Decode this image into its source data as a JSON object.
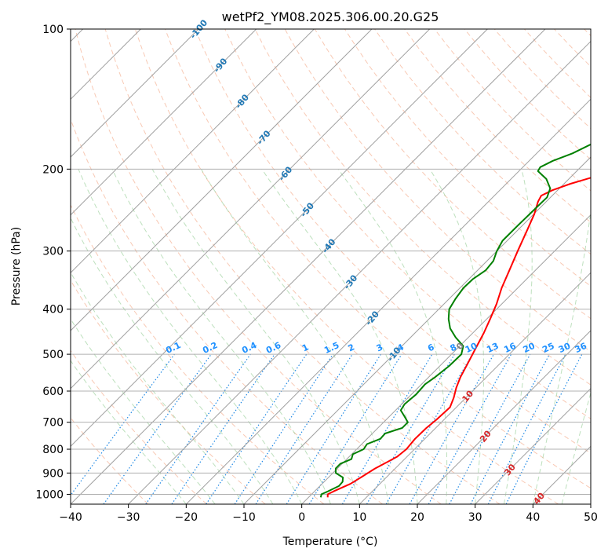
{
  "chart_data": {
    "type": "skew-t",
    "title": "wetPf2_YM08.2025.306.00.20.G25",
    "xlabel": "Temperature (°C)",
    "ylabel": "Pressure (hPa)",
    "xlim": [
      -40,
      50
    ],
    "ylim": [
      1050,
      100
    ],
    "x_ticks": [
      -40,
      -30,
      -20,
      -10,
      0,
      10,
      20,
      30,
      40,
      50
    ],
    "x_tick_labels": [
      "−40",
      "−30",
      "−20",
      "−10",
      "0",
      "10",
      "20",
      "30",
      "40",
      "50"
    ],
    "y_ticks": [
      1000,
      900,
      800,
      700,
      600,
      500,
      400,
      300,
      200,
      100
    ],
    "y_tick_labels": [
      "1000",
      "900",
      "800",
      "700",
      "600",
      "500",
      "400",
      "300",
      "200",
      "100"
    ],
    "isotherm_labels": [
      {
        "t": -100,
        "text": "-100"
      },
      {
        "t": -90,
        "text": "-90"
      },
      {
        "t": -80,
        "text": "-80"
      },
      {
        "t": -70,
        "text": "-70"
      },
      {
        "t": -60,
        "text": "-60"
      },
      {
        "t": -50,
        "text": "-50"
      },
      {
        "t": -40,
        "text": "-40"
      },
      {
        "t": -30,
        "text": "-30"
      },
      {
        "t": -20,
        "text": "-20"
      },
      {
        "t": -10,
        "text": "-10"
      },
      {
        "t": 0,
        "text": "0"
      },
      {
        "t": 10,
        "text": "10"
      },
      {
        "t": 20,
        "text": "20"
      },
      {
        "t": 30,
        "text": "30"
      },
      {
        "t": 40,
        "text": "40"
      }
    ],
    "mixing_ratio_labels": [
      "0.1",
      "0.2",
      "0.4",
      "0.6",
      "1",
      "1.5",
      "2",
      "3",
      "4",
      "6",
      "8",
      "10",
      "13",
      "16",
      "20",
      "25",
      "30",
      "36"
    ],
    "mixing_ratio_values": [
      0.1,
      0.2,
      0.4,
      0.6,
      1,
      1.5,
      2,
      3,
      4,
      6,
      8,
      10,
      13,
      16,
      20,
      25,
      30,
      36
    ],
    "series": [
      {
        "name": "temperature",
        "color": "#ff0000",
        "points": [
          [
            1015,
            3.3
          ],
          [
            1000,
            2.8
          ],
          [
            985,
            3.3
          ],
          [
            950,
            4.9
          ],
          [
            920,
            5.6
          ],
          [
            880,
            6.5
          ],
          [
            850,
            7.6
          ],
          [
            830,
            8.3
          ],
          [
            800,
            8.6
          ],
          [
            760,
            8.3
          ],
          [
            720,
            8.4
          ],
          [
            690,
            8.7
          ],
          [
            650,
            8.9
          ],
          [
            620,
            7.9
          ],
          [
            590,
            6.6
          ],
          [
            560,
            5.5
          ],
          [
            520,
            4.3
          ],
          [
            490,
            3.3
          ],
          [
            450,
            1.9
          ],
          [
            420,
            0.6
          ],
          [
            390,
            -0.9
          ],
          [
            360,
            -2.8
          ],
          [
            330,
            -4.5
          ],
          [
            300,
            -6.4
          ],
          [
            270,
            -8.4
          ],
          [
            250,
            -9.9
          ],
          [
            235,
            -11.4
          ],
          [
            228,
            -11.9
          ],
          [
            222,
            -10.9
          ],
          [
            215,
            -8.9
          ],
          [
            205,
            -4.9
          ],
          [
            195,
            -0.9
          ],
          [
            185,
            2.1
          ],
          [
            175,
            4.1
          ],
          [
            165,
            5.5
          ],
          [
            155,
            5.8
          ],
          [
            145,
            5.1
          ],
          [
            135,
            4.2
          ],
          [
            125,
            4.0
          ],
          [
            115,
            4.2
          ],
          [
            105,
            4.7
          ],
          [
            100,
            4.6
          ]
        ]
      },
      {
        "name": "dewpoint",
        "color": "#008000",
        "points": [
          [
            1015,
            2.1
          ],
          [
            1000,
            1.7
          ],
          [
            985,
            2.3
          ],
          [
            960,
            3.3
          ],
          [
            940,
            3.2
          ],
          [
            920,
            2.5
          ],
          [
            900,
            0.5
          ],
          [
            880,
            -0.3
          ],
          [
            860,
            -0.3
          ],
          [
            840,
            0.8
          ],
          [
            820,
            0.2
          ],
          [
            800,
            1.2
          ],
          [
            780,
            0.9
          ],
          [
            760,
            2.3
          ],
          [
            740,
            2.2
          ],
          [
            720,
            4.2
          ],
          [
            700,
            4.2
          ],
          [
            680,
            2.6
          ],
          [
            660,
            0.9
          ],
          [
            640,
            0.5
          ],
          [
            610,
            0.8
          ],
          [
            580,
            0.6
          ],
          [
            560,
            1.1
          ],
          [
            530,
            1.6
          ],
          [
            500,
            1.7
          ],
          [
            480,
            0.6
          ],
          [
            460,
            -2.2
          ],
          [
            440,
            -4.7
          ],
          [
            420,
            -6.6
          ],
          [
            400,
            -8.2
          ],
          [
            380,
            -8.9
          ],
          [
            360,
            -9.4
          ],
          [
            345,
            -9.3
          ],
          [
            330,
            -8.6
          ],
          [
            315,
            -8.9
          ],
          [
            300,
            -10.0
          ],
          [
            285,
            -10.8
          ],
          [
            265,
            -10.8
          ],
          [
            245,
            -10.7
          ],
          [
            230,
            -10.6
          ],
          [
            220,
            -11.6
          ],
          [
            210,
            -13.9
          ],
          [
            202,
            -16.7
          ],
          [
            198,
            -17.0
          ],
          [
            192,
            -15.9
          ],
          [
            185,
            -13.8
          ],
          [
            176,
            -12.0
          ],
          [
            168,
            -11.7
          ],
          [
            162,
            -13.0
          ],
          [
            155,
            -14.4
          ],
          [
            148,
            -14.6
          ],
          [
            140,
            -13.8
          ],
          [
            132,
            -12.6
          ],
          [
            125,
            -12.0
          ],
          [
            118,
            -12.4
          ],
          [
            110,
            -13.2
          ],
          [
            100,
            -14.6
          ]
        ]
      }
    ]
  }
}
